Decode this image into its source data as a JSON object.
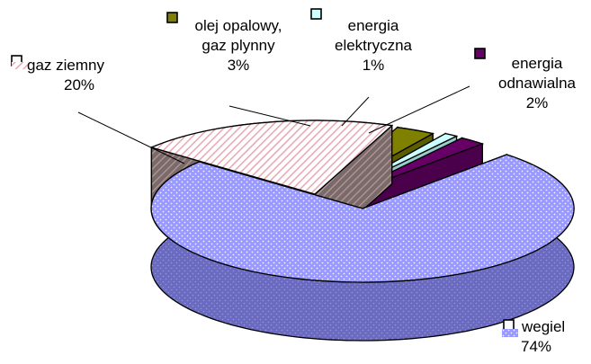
{
  "chart_data": {
    "type": "pie",
    "style": "3d-exploded",
    "title": "",
    "slices": [
      {
        "name": "wegiel",
        "value": 74,
        "label": "74%",
        "color": "#9999ff",
        "pattern": "dots"
      },
      {
        "name": "gaz ziemny",
        "value": 20,
        "label": "20%",
        "color": "#e8a7b3",
        "pattern": "diagonal-hatch"
      },
      {
        "name": "olej opalowy, gaz plynny",
        "value": 3,
        "label": "3%",
        "color": "#808000",
        "pattern": "solid"
      },
      {
        "name": "energia elektryczna",
        "value": 1,
        "label": "1%",
        "color": "#ccffff",
        "pattern": "solid"
      },
      {
        "name": "energia odnawialna",
        "value": 2,
        "label": "2%",
        "color": "#660066",
        "pattern": "solid"
      }
    ],
    "legend": "inline labels with leader lines"
  }
}
